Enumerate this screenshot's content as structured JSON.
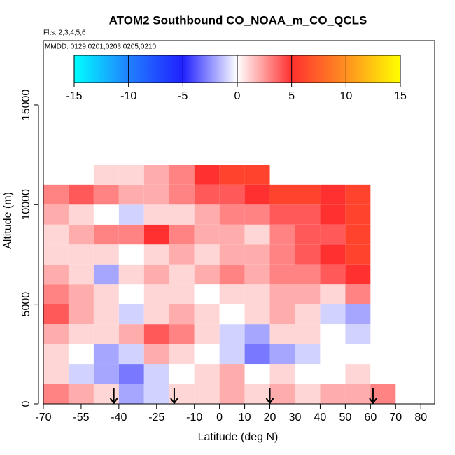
{
  "chart_data": {
    "type": "heatmap",
    "title": "ATOM2 Southbound CO_NOAA_m_CO_QCLS",
    "subtitle": "Flts: 2,3,4,5,6",
    "annotation": "MMDD: 0129,0201,0203,0205,0210",
    "x_label": "Latitude (deg N)",
    "y_label": "Altitude (m)",
    "xlim": [
      -70,
      85.5
    ],
    "ylim": [
      0,
      18230
    ],
    "xticks": [
      -70,
      -55,
      -40,
      -25,
      -10,
      0,
      10,
      20,
      30,
      40,
      50,
      60,
      70,
      80
    ],
    "yticks": [
      0,
      5000,
      10000,
      15000
    ],
    "x_edges": [
      -70,
      -60,
      -50,
      -40,
      -30,
      -20,
      -10,
      0,
      10,
      20,
      30,
      40,
      50,
      60,
      70
    ],
    "y_edges": [
      0,
      1000,
      2000,
      3000,
      4000,
      5000,
      6000,
      7000,
      8000,
      9000,
      10000,
      11000,
      12000
    ],
    "cells": [
      [
        3,
        2,
        1,
        -2,
        -1,
        1,
        1,
        2,
        1,
        2,
        1,
        2,
        2,
        3
      ],
      [
        1,
        -1,
        -2,
        -3,
        -1,
        0,
        1,
        2,
        0,
        1,
        0,
        0,
        1,
        0
      ],
      [
        1,
        0,
        -2,
        -1,
        2,
        1,
        0,
        -1,
        -3,
        -2,
        -1,
        0,
        0,
        null
      ],
      [
        2,
        1,
        1,
        2,
        4,
        3,
        1,
        -1,
        -2,
        1,
        1,
        0,
        -1,
        null
      ],
      [
        4,
        2,
        1,
        -1,
        1,
        2,
        1,
        0,
        1,
        2,
        1,
        -1,
        -2,
        null
      ],
      [
        3,
        2,
        1,
        0,
        1,
        1,
        0,
        1,
        1,
        2,
        2,
        1,
        3,
        null
      ],
      [
        2,
        1,
        -2,
        1,
        2,
        1,
        2,
        3,
        2,
        3,
        3,
        4,
        5,
        null
      ],
      [
        1,
        1,
        1,
        0,
        1,
        2,
        1,
        2,
        2,
        3,
        4,
        5,
        6,
        null
      ],
      [
        1,
        2,
        3,
        3,
        5,
        3,
        2,
        2,
        1,
        3,
        4,
        4,
        6,
        null
      ],
      [
        2,
        1,
        0,
        -1,
        1,
        1,
        2,
        3,
        3,
        4,
        4,
        5,
        6,
        null
      ],
      [
        3,
        4,
        3,
        2,
        2,
        3,
        4,
        4,
        5,
        6,
        6,
        5,
        6,
        null
      ],
      [
        null,
        null,
        1,
        1,
        2,
        3,
        5,
        6,
        6,
        null,
        null,
        null,
        null,
        null
      ]
    ],
    "arrows": [
      -42,
      -18,
      20,
      61
    ],
    "clim": [
      -15,
      15
    ],
    "cticks": [
      -15,
      -10,
      -5,
      0,
      5,
      10,
      15
    ],
    "color_stops": [
      {
        "value": -15,
        "color": "#00ffff"
      },
      {
        "value": -10,
        "color": "#2080ff"
      },
      {
        "value": -5,
        "color": "#2020ff"
      },
      {
        "value": 0,
        "color": "#ffffff"
      },
      {
        "value": 5,
        "color": "#ff3030"
      },
      {
        "value": 10,
        "color": "#ff9020"
      },
      {
        "value": 15,
        "color": "#ffff00"
      }
    ]
  }
}
